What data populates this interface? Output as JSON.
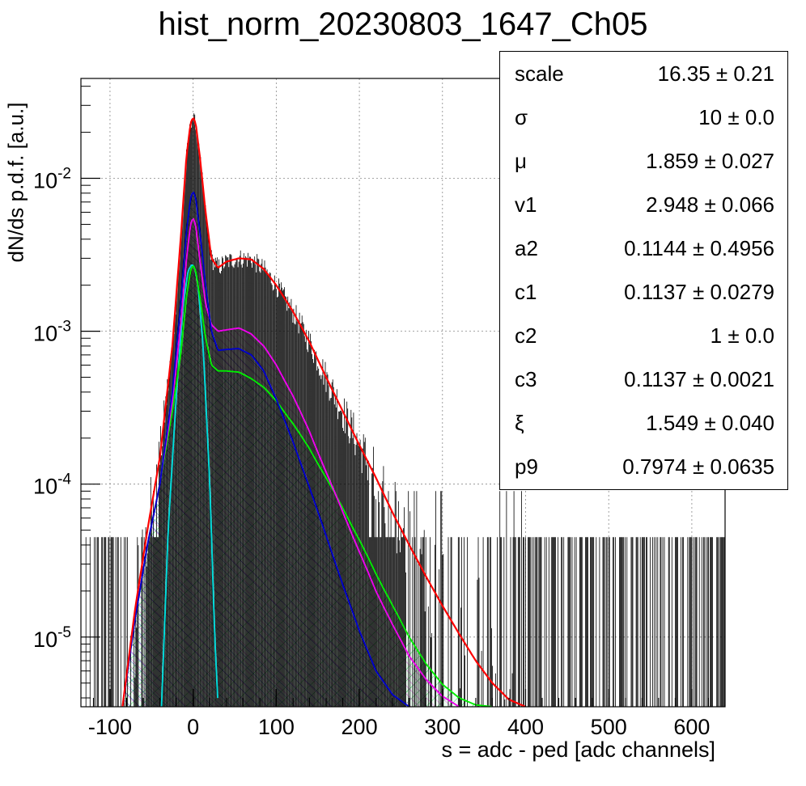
{
  "chart_data": {
    "type": "line",
    "title": "hist_norm_20230803_1647_Ch05",
    "xlabel": "s = adc - ped [adc channels]",
    "ylabel": "dN/ds p.d.f. [a.u.]",
    "xlim": [
      -135,
      640
    ],
    "ylim": [
      3.5e-06,
      0.045
    ],
    "yscale": "log",
    "grid": true,
    "x_ticks": [
      "-100",
      "0",
      "100",
      "200",
      "300",
      "400",
      "500",
      "600"
    ],
    "y_ticks": [
      {
        "base": "10",
        "exp": "-2",
        "value": 0.01
      },
      {
        "base": "10",
        "exp": "-3",
        "value": 0.001
      },
      {
        "base": "10",
        "exp": "-4",
        "value": 0.0001
      },
      {
        "base": "10",
        "exp": "-5",
        "value": 1e-05
      }
    ],
    "series": [
      {
        "color": "#ff0000",
        "style": "total-fit",
        "x": [
          -85,
          -70,
          -55,
          -40,
          -25,
          -15,
          -8,
          -3,
          0,
          3,
          8,
          15,
          22,
          30,
          40,
          55,
          70,
          85,
          100,
          120,
          140,
          160,
          180,
          200,
          220,
          240,
          260,
          280,
          300,
          320,
          340,
          360,
          380,
          400
        ],
        "y": [
          3.5e-06,
          1.5e-05,
          5e-05,
          0.00015,
          0.0008,
          0.004,
          0.014,
          0.023,
          0.025,
          0.023,
          0.014,
          0.006,
          0.003,
          0.0026,
          0.00285,
          0.003,
          0.00295,
          0.00255,
          0.002,
          0.00135,
          0.00085,
          0.0005,
          0.0003,
          0.00018,
          0.00011,
          6.5e-05,
          4e-05,
          2.5e-05,
          1.6e-05,
          1.05e-05,
          7e-06,
          5e-06,
          3.9e-06,
          3.5e-06
        ]
      },
      {
        "color": "#0000cc",
        "style": "component-hatch-blue",
        "x": [
          -85,
          -70,
          -55,
          -40,
          -25,
          -15,
          -8,
          -3,
          0,
          3,
          8,
          15,
          22,
          30,
          40,
          55,
          70,
          85,
          100,
          120,
          140,
          160,
          180,
          200,
          220,
          240,
          260
        ],
        "y": [
          3.5e-06,
          1.3e-05,
          4e-05,
          0.0001,
          0.0004,
          0.0015,
          0.0045,
          0.0075,
          0.0082,
          0.0075,
          0.0045,
          0.002,
          0.001,
          0.00075,
          0.00076,
          0.00077,
          0.0007,
          0.00055,
          0.00036,
          0.00019,
          9.5e-05,
          4.6e-05,
          2.2e-05,
          1.1e-05,
          6e-06,
          4.2e-06,
          3.5e-06
        ]
      },
      {
        "color": "#ee00ee",
        "style": "component-hatch-magenta",
        "x": [
          -85,
          -70,
          -55,
          -40,
          -25,
          -15,
          -8,
          -3,
          0,
          3,
          8,
          15,
          22,
          30,
          40,
          55,
          70,
          85,
          100,
          120,
          140,
          160,
          180,
          200,
          220,
          240,
          260,
          280,
          300,
          320
        ],
        "y": [
          3.5e-06,
          1.3e-05,
          4e-05,
          0.0001,
          0.00035,
          0.0011,
          0.003,
          0.005,
          0.0055,
          0.005,
          0.003,
          0.0015,
          0.0011,
          0.001,
          0.00102,
          0.00105,
          0.00096,
          0.0008,
          0.0006,
          0.00038,
          0.00022,
          0.00012,
          6.6e-05,
          3.6e-05,
          2e-05,
          1.2e-05,
          7.5e-06,
          5.3e-06,
          4.1e-06,
          3.5e-06
        ]
      },
      {
        "color": "#00ee00",
        "style": "component-hatch-green",
        "x": [
          -85,
          -70,
          -55,
          -40,
          -25,
          -15,
          -8,
          -3,
          0,
          3,
          8,
          15,
          22,
          30,
          40,
          55,
          70,
          85,
          100,
          120,
          140,
          160,
          180,
          200,
          220,
          240,
          260,
          280,
          300,
          320,
          340,
          360
        ],
        "y": [
          3.5e-06,
          1.3e-05,
          4e-05,
          0.0001,
          0.0003,
          0.0007,
          0.0017,
          0.0025,
          0.0027,
          0.0025,
          0.0017,
          0.0009,
          0.0006,
          0.00055,
          0.00055,
          0.00054,
          0.00049,
          0.00043,
          0.00035,
          0.00025,
          0.00017,
          0.00011,
          7e-05,
          4.3e-05,
          2.6e-05,
          1.6e-05,
          1e-05,
          6.7e-06,
          4.9e-06,
          4e-06,
          3.6e-06,
          3.5e-06
        ]
      },
      {
        "color": "#00dddd",
        "style": "pedestal-gauss",
        "x": [
          -38,
          -30,
          -20,
          -12,
          -6,
          -2,
          0,
          2,
          6,
          12,
          20,
          26,
          30
        ],
        "y": [
          3.5e-06,
          5e-05,
          0.0004,
          0.0015,
          0.0025,
          0.0027,
          0.0027,
          0.0026,
          0.002,
          0.0008,
          0.0001,
          1e-05,
          3.5e-06
        ]
      }
    ],
    "data_histogram": {
      "color": "#000000",
      "baseline_level": 4.5e-05
    }
  },
  "stats": [
    {
      "name": "scale",
      "value": "16.35 ± 0.21"
    },
    {
      "name": "σ",
      "value": "10 ± 0.0"
    },
    {
      "name": "μ",
      "value": "1.859 ± 0.027"
    },
    {
      "name": "v1",
      "value": "2.948 ± 0.066"
    },
    {
      "name": "a2",
      "value": "0.1144 ± 0.4956"
    },
    {
      "name": "c1",
      "value": "0.1137 ± 0.0279"
    },
    {
      "name": "c2",
      "value": "1 ± 0.0"
    },
    {
      "name": "c3",
      "value": "0.1137 ± 0.0021"
    },
    {
      "name": "ξ",
      "value": "1.549 ± 0.040"
    },
    {
      "name": "p9",
      "value": "0.7974 ± 0.0635"
    }
  ]
}
